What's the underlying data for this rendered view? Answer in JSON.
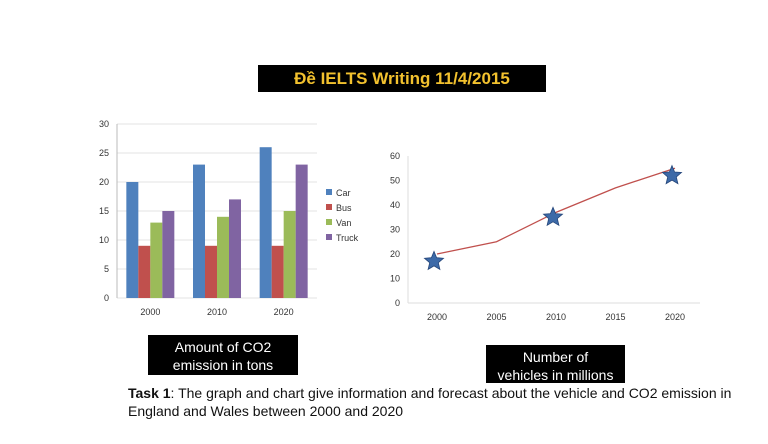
{
  "title": "Đề IELTS Writing 11/4/2015",
  "bar_label": [
    "Amount of CO2",
    "emission in tons"
  ],
  "line_label": [
    "Number of",
    "vehicles in millions"
  ],
  "task": {
    "bold": "Task 1",
    "text": ": The graph and chart give information and forecast about the vehicle and CO2 emission in England and Wales between 2000 and 2020"
  },
  "chart_data": [
    {
      "type": "bar",
      "title": "Amount of CO2 emission in tons",
      "categories": [
        "2000",
        "2010",
        "2020"
      ],
      "series": [
        {
          "name": "Car",
          "color": "#4f81bd",
          "values": [
            20,
            23,
            26
          ]
        },
        {
          "name": "Bus",
          "color": "#c0504d",
          "values": [
            9,
            9,
            9
          ]
        },
        {
          "name": "Van",
          "color": "#9bbb59",
          "values": [
            13,
            14,
            15
          ]
        },
        {
          "name": "Truck",
          "color": "#8064a2",
          "values": [
            15,
            17,
            23
          ]
        }
      ],
      "ylim": [
        0,
        30
      ],
      "yticks": [
        0,
        5,
        10,
        15,
        20,
        25,
        30
      ],
      "grid": true,
      "legend": "right"
    },
    {
      "type": "line",
      "title": "Number of vehicles in millions",
      "x": [
        2000,
        2005,
        2010,
        2015,
        2020
      ],
      "series": [
        {
          "name": "line",
          "color": "#c0504d",
          "values": [
            20,
            25,
            37,
            47,
            55
          ]
        },
        {
          "name": "stars",
          "color": "#3d6aa8",
          "marker": "star",
          "x": [
            2000,
            2010,
            2020
          ],
          "values": [
            17,
            35,
            52
          ]
        }
      ],
      "ylim": [
        0,
        60
      ],
      "yticks": [
        0,
        10,
        20,
        30,
        40,
        50,
        60
      ],
      "grid": false
    }
  ]
}
